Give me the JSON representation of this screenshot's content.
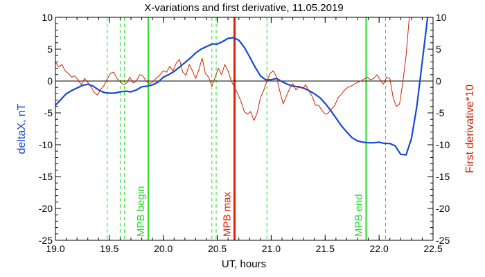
{
  "chart_data": {
    "type": "line",
    "title": "X-variations and first derivative, 11.05.2019",
    "xlabel": "UT, hours",
    "ylabel_left": "deltaX, nT",
    "ylabel_right": "First derivative*10",
    "xlim": [
      19.0,
      22.5
    ],
    "ylim": [
      -25,
      10
    ],
    "x_ticks": [
      "19.0",
      "19.5",
      "20.0",
      "20.5",
      "21.0",
      "21.5",
      "22.0",
      "22.5"
    ],
    "y_ticks": [
      "10",
      "5",
      "0",
      "-5",
      "-10",
      "-15",
      "-20",
      "-25"
    ],
    "colors": {
      "deltax": "#1446d8",
      "derivative": "#cc2200",
      "zero_line": "#000000",
      "mpb_begin_end": "#22dd22",
      "mpb_max": "#e02000",
      "dashed_markers": "#22dd22"
    },
    "series": [
      {
        "key": "deltax",
        "name": "deltaX, nT",
        "points": [
          [
            19.0,
            -3.8
          ],
          [
            19.05,
            -2.9
          ],
          [
            19.1,
            -2.0
          ],
          [
            19.15,
            -1.5
          ],
          [
            19.2,
            -1.1
          ],
          [
            19.25,
            -0.7
          ],
          [
            19.3,
            -0.5
          ],
          [
            19.35,
            -0.8
          ],
          [
            19.4,
            -1.4
          ],
          [
            19.45,
            -1.8
          ],
          [
            19.5,
            -1.9
          ],
          [
            19.55,
            -1.9
          ],
          [
            19.6,
            -1.7
          ],
          [
            19.65,
            -1.6
          ],
          [
            19.7,
            -1.7
          ],
          [
            19.75,
            -1.4
          ],
          [
            19.8,
            -0.9
          ],
          [
            19.85,
            -0.8
          ],
          [
            19.9,
            -0.6
          ],
          [
            19.95,
            -0.2
          ],
          [
            20.0,
            0.6
          ],
          [
            20.05,
            1.0
          ],
          [
            20.1,
            1.5
          ],
          [
            20.15,
            2.2
          ],
          [
            20.2,
            2.9
          ],
          [
            20.25,
            3.6
          ],
          [
            20.3,
            4.4
          ],
          [
            20.35,
            5.0
          ],
          [
            20.4,
            5.4
          ],
          [
            20.45,
            5.8
          ],
          [
            20.5,
            5.8
          ],
          [
            20.55,
            6.2
          ],
          [
            20.6,
            6.7
          ],
          [
            20.65,
            6.8
          ],
          [
            20.7,
            6.4
          ],
          [
            20.75,
            5.3
          ],
          [
            20.8,
            3.8
          ],
          [
            20.85,
            2.2
          ],
          [
            20.9,
            0.8
          ],
          [
            20.95,
            0.2
          ],
          [
            21.0,
            0.2
          ],
          [
            21.05,
            0.4
          ],
          [
            21.1,
            -0.1
          ],
          [
            21.15,
            -0.5
          ],
          [
            21.2,
            -0.8
          ],
          [
            21.25,
            -0.9
          ],
          [
            21.3,
            -1.1
          ],
          [
            21.35,
            -1.5
          ],
          [
            21.4,
            -2.0
          ],
          [
            21.45,
            -2.6
          ],
          [
            21.5,
            -3.5
          ],
          [
            21.55,
            -4.6
          ],
          [
            21.6,
            -5.8
          ],
          [
            21.65,
            -7.0
          ],
          [
            21.7,
            -8.0
          ],
          [
            21.75,
            -8.9
          ],
          [
            21.8,
            -9.4
          ],
          [
            21.85,
            -9.6
          ],
          [
            21.9,
            -9.7
          ],
          [
            21.95,
            -9.7
          ],
          [
            22.0,
            -9.6
          ],
          [
            22.05,
            -9.8
          ],
          [
            22.1,
            -9.8
          ],
          [
            22.15,
            -10.2
          ],
          [
            22.2,
            -11.5
          ],
          [
            22.25,
            -11.6
          ],
          [
            22.3,
            -9.0
          ],
          [
            22.35,
            -4.0
          ],
          [
            22.4,
            3.0
          ],
          [
            22.45,
            10.0
          ]
        ]
      },
      {
        "key": "derivative",
        "name": "First derivative*10",
        "points": [
          [
            19.0,
            3.0
          ],
          [
            19.03,
            2.2
          ],
          [
            19.06,
            2.6
          ],
          [
            19.09,
            1.6
          ],
          [
            19.12,
            1.2
          ],
          [
            19.15,
            0.6
          ],
          [
            19.18,
            0.8
          ],
          [
            19.21,
            0.2
          ],
          [
            19.24,
            -0.6
          ],
          [
            19.27,
            0.4
          ],
          [
            19.3,
            -0.2
          ],
          [
            19.33,
            -0.9
          ],
          [
            19.36,
            -1.8
          ],
          [
            19.39,
            -2.2
          ],
          [
            19.42,
            -1.3
          ],
          [
            19.45,
            -0.7
          ],
          [
            19.48,
            0.3
          ],
          [
            19.51,
            1.2
          ],
          [
            19.54,
            1.4
          ],
          [
            19.57,
            0.4
          ],
          [
            19.6,
            -0.1
          ],
          [
            19.63,
            -0.6
          ],
          [
            19.66,
            -0.3
          ],
          [
            19.69,
            0.6
          ],
          [
            19.72,
            -0.3
          ],
          [
            19.75,
            0.0
          ],
          [
            19.78,
            1.0
          ],
          [
            19.81,
            0.8
          ],
          [
            19.84,
            0.0
          ],
          [
            19.87,
            -0.4
          ],
          [
            19.9,
            -0.2
          ],
          [
            19.93,
            0.4
          ],
          [
            19.96,
            0.8
          ],
          [
            20.0,
            1.6
          ],
          [
            20.03,
            1.4
          ],
          [
            20.06,
            2.3
          ],
          [
            20.09,
            1.6
          ],
          [
            20.12,
            2.8
          ],
          [
            20.15,
            3.4
          ],
          [
            20.18,
            1.4
          ],
          [
            20.21,
            0.9
          ],
          [
            20.24,
            2.6
          ],
          [
            20.27,
            1.6
          ],
          [
            20.3,
            0.4
          ],
          [
            20.33,
            1.8
          ],
          [
            20.36,
            3.6
          ],
          [
            20.39,
            1.2
          ],
          [
            20.42,
            0.6
          ],
          [
            20.45,
            -0.8
          ],
          [
            20.48,
            0.6
          ],
          [
            20.51,
            2.0
          ],
          [
            20.54,
            1.0
          ],
          [
            20.57,
            2.6
          ],
          [
            20.6,
            1.6
          ],
          [
            20.63,
            0.0
          ],
          [
            20.66,
            -1.0
          ],
          [
            20.69,
            -2.0
          ],
          [
            20.72,
            -3.2
          ],
          [
            20.75,
            -4.8
          ],
          [
            20.78,
            -5.2
          ],
          [
            20.81,
            -4.8
          ],
          [
            20.84,
            -6.2
          ],
          [
            20.87,
            -5.0
          ],
          [
            20.9,
            -2.6
          ],
          [
            20.93,
            -1.5
          ],
          [
            20.96,
            0.0
          ],
          [
            20.99,
            1.2
          ],
          [
            21.02,
            1.6
          ],
          [
            21.05,
            0.6
          ],
          [
            21.08,
            -1.6
          ],
          [
            21.11,
            -3.6
          ],
          [
            21.14,
            -2.4
          ],
          [
            21.17,
            -1.2
          ],
          [
            21.2,
            -0.4
          ],
          [
            21.23,
            -1.4
          ],
          [
            21.26,
            -0.8
          ],
          [
            21.29,
            -1.2
          ],
          [
            21.32,
            -0.6
          ],
          [
            21.35,
            -1.6
          ],
          [
            21.38,
            -2.4
          ],
          [
            21.41,
            -3.8
          ],
          [
            21.44,
            -3.8
          ],
          [
            21.47,
            -4.6
          ],
          [
            21.5,
            -5.2
          ],
          [
            21.53,
            -5.0
          ],
          [
            21.56,
            -4.4
          ],
          [
            21.59,
            -3.8
          ],
          [
            21.62,
            -2.6
          ],
          [
            21.65,
            -2.1
          ],
          [
            21.68,
            -1.4
          ],
          [
            21.71,
            -1.0
          ],
          [
            21.74,
            -0.8
          ],
          [
            21.77,
            -0.5
          ],
          [
            21.8,
            -0.2
          ],
          [
            21.83,
            0.0
          ],
          [
            21.86,
            0.3
          ],
          [
            21.89,
            0.6
          ],
          [
            21.92,
            0.2
          ],
          [
            21.95,
            0.4
          ],
          [
            21.98,
            1.0
          ],
          [
            22.01,
            0.2
          ],
          [
            22.04,
            -0.5
          ],
          [
            22.07,
            0.6
          ],
          [
            22.1,
            0.4
          ],
          [
            22.13,
            -2.6
          ],
          [
            22.16,
            -4.0
          ],
          [
            22.19,
            -3.6
          ],
          [
            22.22,
            -0.2
          ],
          [
            22.25,
            4.0
          ],
          [
            22.28,
            10.0
          ]
        ]
      }
    ],
    "markers": [
      {
        "x": 19.48,
        "style": "dashed",
        "color_key": "dashed_markers",
        "label": ""
      },
      {
        "x": 19.6,
        "style": "dashed",
        "color_key": "dashed_markers",
        "label": ""
      },
      {
        "x": 19.64,
        "style": "dashed",
        "color_key": "dashed_markers",
        "label": ""
      },
      {
        "x": 19.86,
        "style": "solid",
        "color_key": "mpb_begin_end",
        "label": "MPB begin"
      },
      {
        "x": 20.45,
        "style": "dashed",
        "color_key": "dashed_markers",
        "label": ""
      },
      {
        "x": 20.49,
        "style": "dashed",
        "color_key": "dashed_markers",
        "label": ""
      },
      {
        "x": 20.66,
        "style": "solid",
        "color_key": "mpb_max",
        "label": "MPB max"
      },
      {
        "x": 20.96,
        "style": "dashed",
        "color_key": "dashed_markers",
        "label": ""
      },
      {
        "x": 21.88,
        "style": "solid",
        "color_key": "mpb_begin_end",
        "label": "MPB end"
      },
      {
        "x": 22.06,
        "style": "dashed",
        "color_key": "dashed_markers",
        "label": ""
      }
    ],
    "zero_line_y": 0,
    "grid": false
  }
}
